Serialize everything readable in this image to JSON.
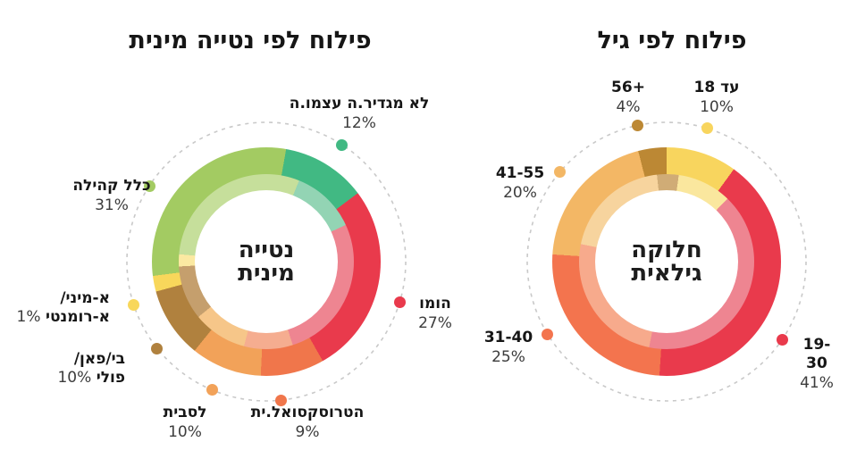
{
  "chart_data": [
    {
      "type": "pie",
      "style": "double-ring-donut",
      "title": "פילוח לפי נטייה מינית",
      "center_label": "נטייה\nמינית",
      "units": "%",
      "slices": [
        {
          "label": "לא מגדיר.ה עצמו.ה",
          "value": 12,
          "pct": "12%",
          "color": "#41B983",
          "inner_color": "#93D4B4"
        },
        {
          "label": "הומו",
          "value": 27,
          "pct": "27%",
          "color": "#E93A4C",
          "inner_color": "#EE8591"
        },
        {
          "label": "הטרוסקסואל.ית",
          "value": 9,
          "pct": "9%",
          "color": "#F0764B",
          "inner_color": "#F5AD90"
        },
        {
          "label": "לסבית",
          "value": 10,
          "pct": "10%",
          "color": "#F2A259",
          "inner_color": "#F6C689"
        },
        {
          "label": "בי/פאן/\nפולי",
          "value": 10,
          "pct": "10%",
          "color": "#B0813E",
          "inner_color": "#C59F6D"
        },
        {
          "label": "א-מיני/\nא-רומנטי",
          "value": 1,
          "pct": "1%",
          "color": "#F8D75B",
          "inner_color": "#FBE9A2"
        },
        {
          "label": "כלל קהילה",
          "value": 31,
          "pct": "31%",
          "color": "#A3CB62",
          "inner_color": "#C6DF9B"
        }
      ],
      "layout": {
        "legend_position": "around",
        "rings": "outer+inner",
        "start_angle_deg": 10,
        "inner_ring_extra_rotation_deg": 12,
        "min_slice_display_deg": 8,
        "dot_angles_deg": [
          33,
          107,
          174,
          203,
          231.5,
          252,
          303
        ],
        "guide_circle": "dashed",
        "guide_circle_color": "#C9C9C9"
      }
    },
    {
      "type": "pie",
      "style": "double-ring-donut",
      "title": "פילוח לפי גיל",
      "center_label": "חלוקה\nגילאית",
      "units": "%",
      "slices": [
        {
          "label": "עד 18",
          "value": 10,
          "pct": "10%",
          "color": "#F8D55E",
          "inner_color": "#FAE79E"
        },
        {
          "label": "19-30",
          "value": 41,
          "pct": "41%",
          "color": "#E93A4C",
          "inner_color": "#EE8591"
        },
        {
          "label": "31-40",
          "value": 25,
          "pct": "25%",
          "color": "#F3744E",
          "inner_color": "#F7AA8C"
        },
        {
          "label": "41-55",
          "value": 20,
          "pct": "20%",
          "color": "#F3B765",
          "inner_color": "#F7D49E"
        },
        {
          "label": "+56",
          "value": 4,
          "pct": "4%",
          "color": "#BC8834",
          "inner_color": "#D0AC76"
        }
      ],
      "layout": {
        "legend_position": "around",
        "rings": "outer+inner",
        "start_angle_deg": 0,
        "inner_ring_extra_rotation_deg": 8,
        "min_slice_display_deg": 8,
        "dot_angles_deg": [
          17,
          124,
          238.5,
          310,
          348
        ],
        "guide_circle": "dashed",
        "guide_circle_color": "#C9C9C9"
      }
    }
  ]
}
